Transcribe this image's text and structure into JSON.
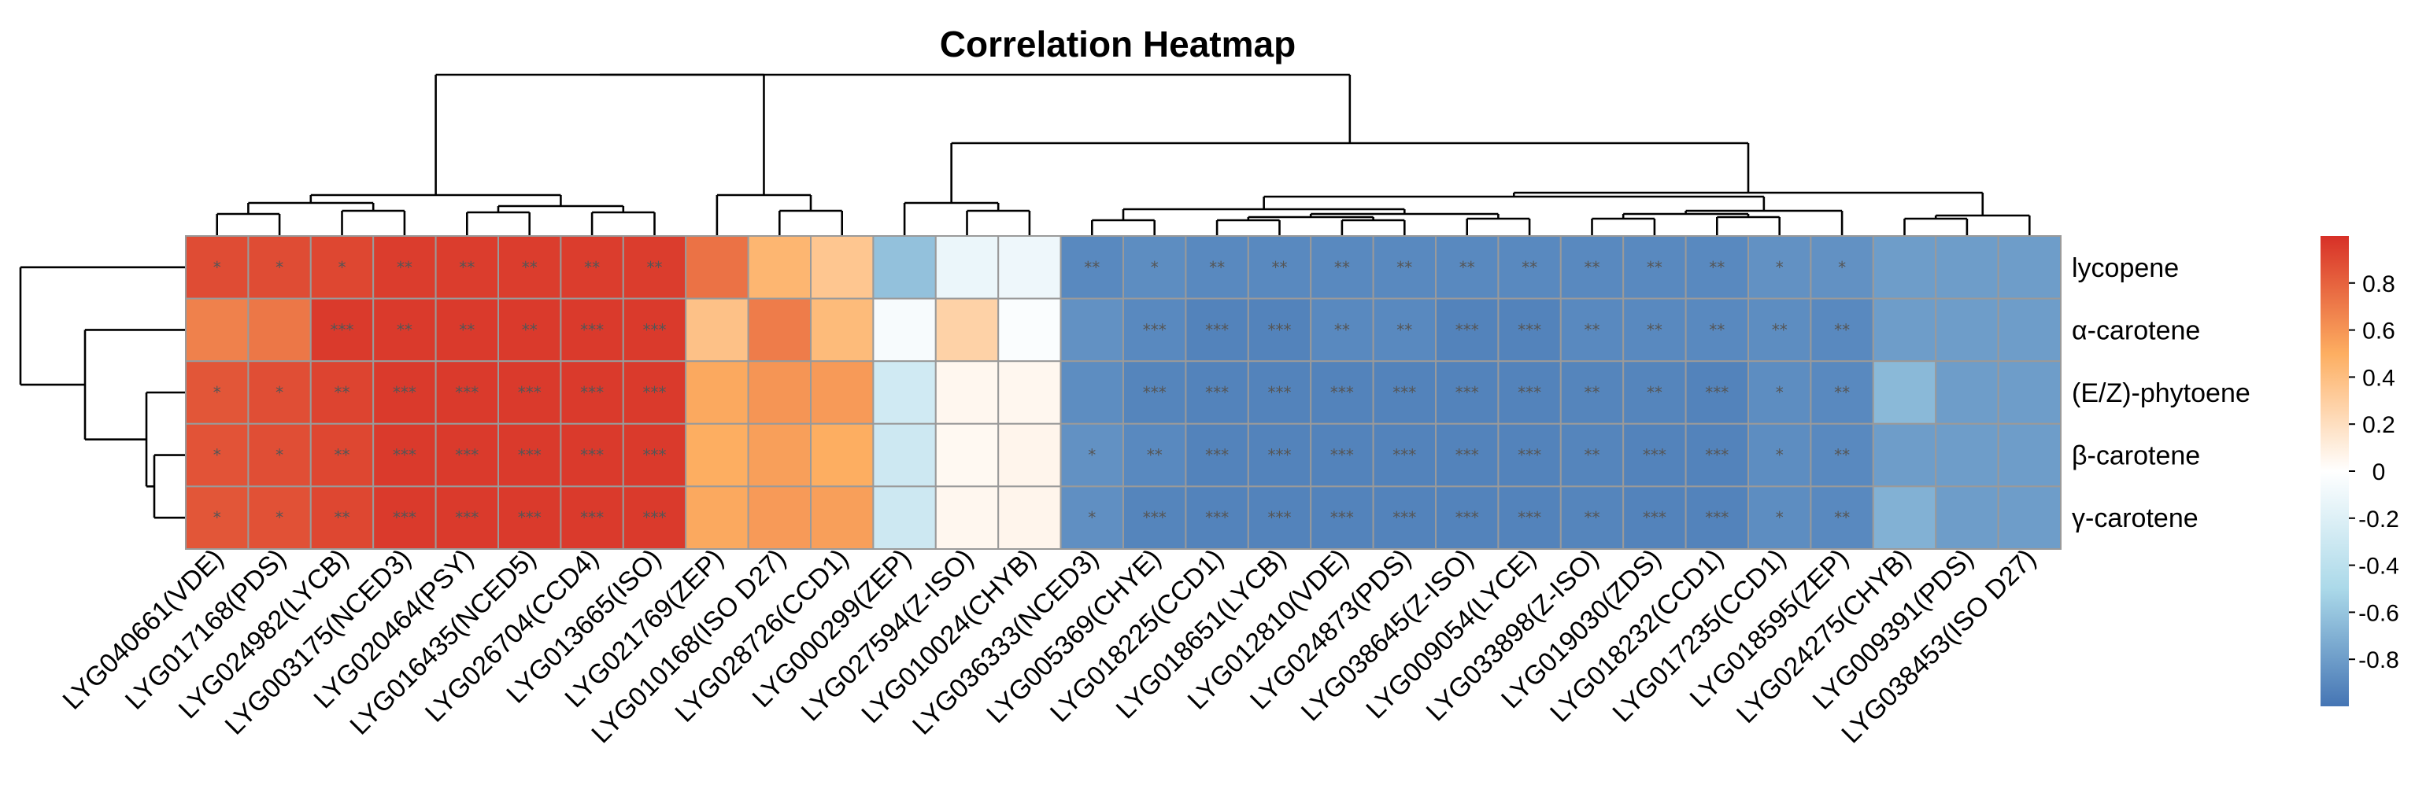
{
  "chart_data": {
    "type": "heatmap",
    "title": "Correlation Heatmap",
    "rows": [
      "lycopene",
      "α-carotene",
      "(E/Z)-phytoene",
      "β-carotene",
      "γ-carotene"
    ],
    "columns": [
      "LYG040661(VDE)",
      "LYG017168(PDS)",
      "LYG024982(LYCB)",
      "LYG003175(NCED3)",
      "LYG020464(PSY)",
      "LYG016435(NCED5)",
      "LYG026704(CCD4)",
      "LYG013665(ISO)",
      "LYG021769(ZEP)",
      "LYG010168(ISO D27)",
      "LYG028726(CCD1)",
      "LYG000299(ZEP)",
      "LYG027594(Z-ISO)",
      "LYG010024(CHYB)",
      "LYG036333(NCED3)",
      "LYG005369(CHYE)",
      "LYG018225(CCD1)",
      "LYG018651(LYCB)",
      "LYG012810(VDE)",
      "LYG024873(PDS)",
      "LYG038645(Z-ISO)",
      "LYG009054(LYCE)",
      "LYG033898(Z-ISO)",
      "LYG019030(ZDS)",
      "LYG018232(CCD1)",
      "LYG017235(CCD1)",
      "LYG018595(ZEP)",
      "LYG024275(CHYB)",
      "LYG009391(PDS)",
      "LYG038453(ISO D27)"
    ],
    "values": [
      [
        0.89,
        0.89,
        0.91,
        0.95,
        0.95,
        0.95,
        0.95,
        0.95,
        0.74,
        0.45,
        0.35,
        -0.62,
        -0.12,
        -0.1,
        -0.9,
        -0.88,
        -0.9,
        -0.9,
        -0.9,
        -0.9,
        -0.9,
        -0.9,
        -0.9,
        -0.9,
        -0.9,
        -0.86,
        -0.86,
        -0.8,
        -0.8,
        -0.8
      ],
      [
        0.68,
        0.72,
        0.96,
        0.96,
        0.96,
        0.96,
        0.96,
        0.96,
        0.38,
        0.7,
        0.42,
        -0.05,
        0.28,
        -0.03,
        -0.86,
        -0.9,
        -0.93,
        -0.93,
        -0.9,
        -0.9,
        -0.93,
        -0.93,
        -0.9,
        -0.9,
        -0.9,
        -0.88,
        -0.9,
        -0.8,
        -0.8,
        -0.8
      ],
      [
        0.85,
        0.88,
        0.92,
        0.96,
        0.96,
        0.96,
        0.96,
        0.96,
        0.52,
        0.6,
        0.58,
        -0.28,
        0.05,
        0.05,
        -0.88,
        -0.92,
        -0.93,
        -0.93,
        -0.93,
        -0.93,
        -0.93,
        -0.93,
        -0.92,
        -0.92,
        -0.93,
        -0.88,
        -0.9,
        -0.66,
        -0.8,
        -0.8
      ],
      [
        0.86,
        0.88,
        0.91,
        0.96,
        0.96,
        0.96,
        0.96,
        0.96,
        0.5,
        0.56,
        0.5,
        -0.3,
        0.04,
        0.06,
        -0.86,
        -0.9,
        -0.93,
        -0.93,
        -0.93,
        -0.93,
        -0.93,
        -0.93,
        -0.92,
        -0.93,
        -0.93,
        -0.88,
        -0.9,
        -0.8,
        -0.8,
        -0.8
      ],
      [
        0.85,
        0.87,
        0.91,
        0.96,
        0.96,
        0.96,
        0.96,
        0.96,
        0.52,
        0.58,
        0.56,
        -0.3,
        0.05,
        0.06,
        -0.87,
        -0.92,
        -0.93,
        -0.93,
        -0.93,
        -0.93,
        -0.93,
        -0.93,
        -0.92,
        -0.93,
        -0.93,
        -0.88,
        -0.9,
        -0.7,
        -0.8,
        -0.8
      ]
    ],
    "significance": [
      [
        "*",
        "*",
        "*",
        "**",
        "**",
        "**",
        "**",
        "**",
        "",
        "",
        "",
        "",
        "",
        "",
        "**",
        "*",
        "**",
        "**",
        "**",
        "**",
        "**",
        "**",
        "**",
        "**",
        "**",
        "*",
        "*",
        "",
        "",
        ""
      ],
      [
        "",
        "",
        "***",
        "**",
        "**",
        "**",
        "***",
        "***",
        "",
        "",
        "",
        "",
        "",
        "",
        "",
        "***",
        "***",
        "***",
        "**",
        "**",
        "***",
        "***",
        "**",
        "**",
        "**",
        "**",
        "**",
        "",
        "",
        ""
      ],
      [
        "*",
        "*",
        "**",
        "***",
        "***",
        "***",
        "***",
        "***",
        "",
        "",
        "",
        "",
        "",
        "",
        "",
        "***",
        "***",
        "***",
        "***",
        "***",
        "***",
        "***",
        "**",
        "**",
        "***",
        "*",
        "**",
        "",
        "",
        ""
      ],
      [
        "*",
        "*",
        "**",
        "***",
        "***",
        "***",
        "***",
        "***",
        "",
        "",
        "",
        "",
        "",
        "",
        "*",
        "**",
        "***",
        "***",
        "***",
        "***",
        "***",
        "***",
        "**",
        "***",
        "***",
        "*",
        "**",
        "",
        "",
        ""
      ],
      [
        "*",
        "*",
        "**",
        "***",
        "***",
        "***",
        "***",
        "***",
        "",
        "",
        "",
        "",
        "",
        "",
        "*",
        "***",
        "***",
        "***",
        "***",
        "***",
        "***",
        "***",
        "**",
        "***",
        "***",
        "*",
        "**",
        "",
        "",
        ""
      ]
    ],
    "colorbar": {
      "ticks": [
        "0.8",
        "0.6",
        "0.4",
        "0.2",
        "0",
        "-0.2",
        "-0.4",
        "-0.6",
        "-0.8"
      ],
      "range": [
        -1,
        1
      ],
      "low_color": "#4575b4",
      "mid_color": "#ffffff",
      "high_color": "#d73027"
    },
    "dendrogram": {
      "rows": "hierarchical clustering of carotenoid compounds",
      "columns": "hierarchical clustering of genes"
    }
  }
}
